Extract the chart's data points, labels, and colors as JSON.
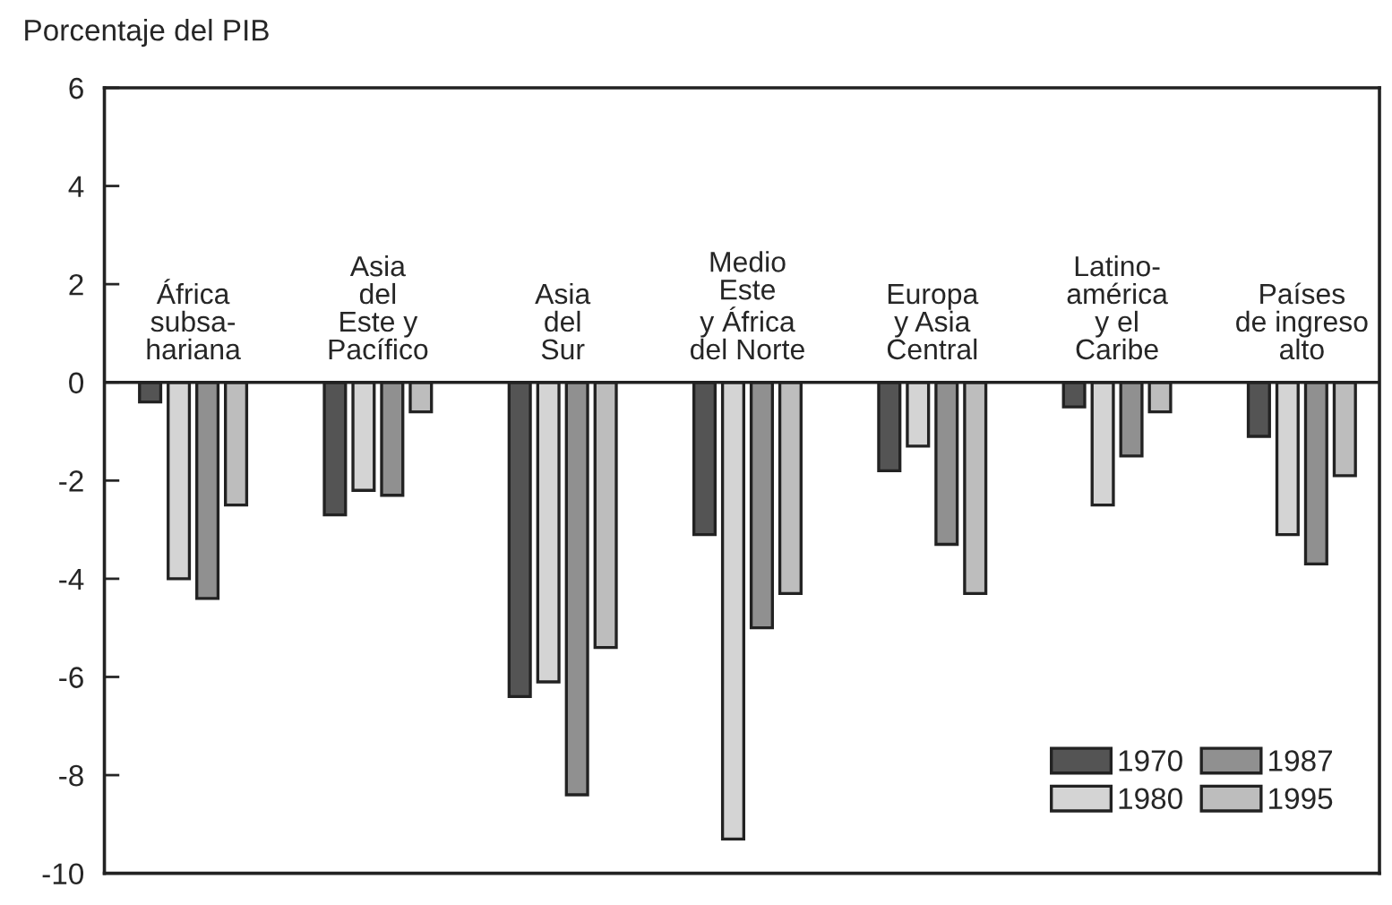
{
  "chart_data": {
    "type": "bar",
    "ylabel": "Porcentaje del PIB",
    "categories": [
      "África\nsubsa-\nhariana",
      "Asia\ndel\nEste y\nPacífico",
      "Asia\ndel\nSur",
      "Medio\nEste\ny África\ndel Norte",
      "Europa\ny Asia\nCentral",
      "Latino-\namérica\ny el\nCaribe",
      "Países\nde ingreso\nalto"
    ],
    "series": [
      {
        "name": "1970",
        "color": "#545454",
        "values": [
          -0.4,
          -2.7,
          -6.4,
          -3.1,
          -1.8,
          -0.5,
          -1.1
        ]
      },
      {
        "name": "1980",
        "color": "#d4d4d4",
        "values": [
          -4.0,
          -2.2,
          -6.1,
          -9.3,
          -1.3,
          -2.5,
          -3.1
        ]
      },
      {
        "name": "1987",
        "color": "#909090",
        "values": [
          -4.4,
          -2.3,
          -8.4,
          -5.0,
          -3.3,
          -1.5,
          -3.7
        ]
      },
      {
        "name": "1995",
        "color": "#bdbdbd",
        "values": [
          -2.5,
          -0.6,
          -5.4,
          -4.3,
          -4.3,
          -0.6,
          -1.9
        ]
      }
    ],
    "ylim": [
      -10,
      6
    ],
    "yticks": [
      -10,
      -8,
      -6,
      -4,
      -2,
      0,
      2,
      4,
      6
    ],
    "grid": false,
    "legend": "bottom right"
  }
}
